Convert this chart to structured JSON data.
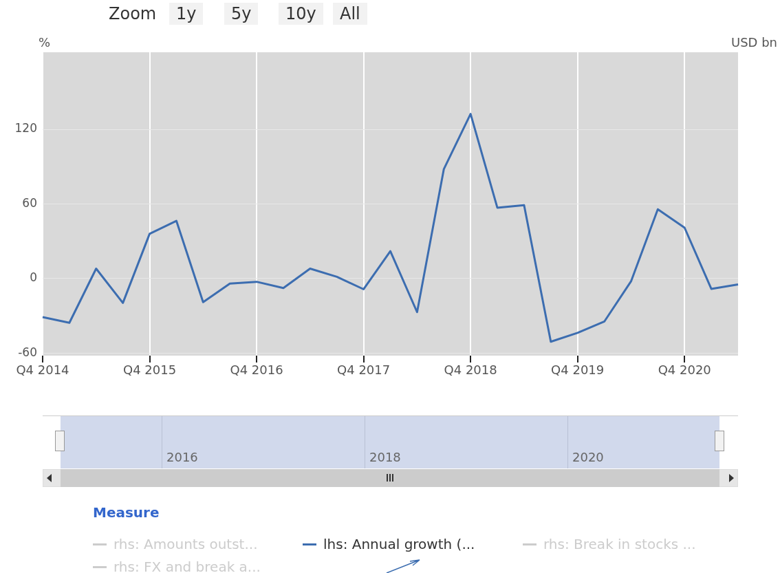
{
  "chart_data": {
    "type": "line",
    "ylabel": "%",
    "y2label": "USD bn",
    "legend_title": "Measure",
    "legend": "bottom",
    "grid": true,
    "marker": "none",
    "line_style": "solid",
    "categories": [
      "Q4 2014",
      null,
      null,
      null,
      "Q4 2015",
      null,
      null,
      null,
      "Q4 2016",
      null,
      null,
      null,
      "Q4 2017",
      null,
      null,
      null,
      "Q4 2018",
      null,
      null,
      null,
      "Q4 2019",
      null,
      null,
      null,
      "Q4 2020",
      null,
      null
    ],
    "ylim": [
      -62,
      182
    ],
    "yticks": [
      -60,
      0,
      60,
      120
    ],
    "series": [
      {
        "name": "rhs: Amounts outst...",
        "color": "#cccccc",
        "values": [
          null,
          null,
          null,
          null,
          null,
          null,
          null,
          null,
          null,
          null,
          null,
          null,
          null,
          null,
          null,
          null,
          null,
          null,
          null,
          null,
          null,
          null,
          null,
          null,
          null,
          null,
          null
        ]
      },
      {
        "name": "lhs: Annual growth (...",
        "color": "#3c6db0",
        "values": [
          -31,
          -35.6,
          8,
          -19.6,
          36,
          46.4,
          -19,
          -4,
          -2.6,
          -7.6,
          8,
          1.4,
          -8.6,
          22,
          -27,
          88,
          132.4,
          57,
          59,
          -50.8,
          -43.7,
          -34.6,
          -2.2,
          55.7,
          40.9,
          -8.3,
          -4.7
        ]
      },
      {
        "name": "rhs: Break in stocks ...",
        "color": "#cccccc",
        "values": [
          null,
          null,
          null,
          null,
          null,
          null,
          null,
          null,
          null,
          null,
          null,
          null,
          null,
          null,
          null,
          null,
          null,
          null,
          null,
          null,
          null,
          null,
          null,
          null,
          null,
          null,
          null
        ]
      },
      {
        "name": "rhs: FX and break a...",
        "color": "#cccccc",
        "values": [
          null,
          null,
          null,
          null,
          null,
          null,
          null,
          null,
          null,
          null,
          null,
          null,
          null,
          null,
          null,
          null,
          null,
          null,
          null,
          null,
          null,
          null,
          null,
          null,
          null,
          null,
          null
        ]
      }
    ],
    "annotations": [
      "Zoom",
      "1y",
      "5y",
      "10y",
      "All",
      "2016",
      "2018",
      "2020"
    ]
  }
}
